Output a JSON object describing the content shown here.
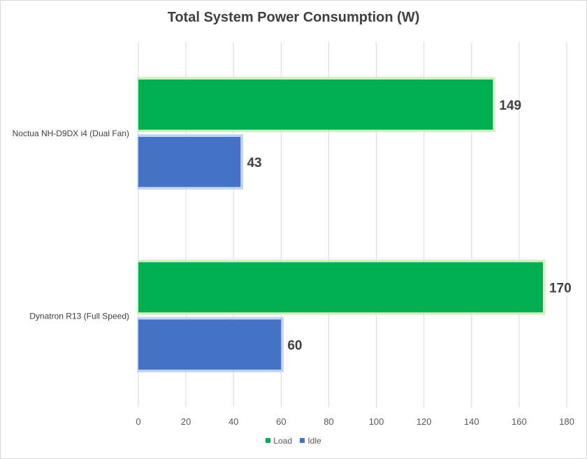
{
  "chart_data": {
    "type": "bar",
    "orientation": "horizontal",
    "title": "Total System Power Consumption (W)",
    "categories": [
      "Noctua NH-D9DX i4 (Dual Fan)",
      "Dynatron R13 (Full Speed)"
    ],
    "series": [
      {
        "name": "Load",
        "color": "#00b050",
        "values": [
          149,
          170
        ]
      },
      {
        "name": "Idle",
        "color": "#4472c4",
        "values": [
          43,
          60
        ]
      }
    ],
    "xlim": [
      0,
      180
    ],
    "xticks": [
      0,
      20,
      40,
      60,
      80,
      100,
      120,
      140,
      160,
      180
    ],
    "grid": true,
    "legend_position": "bottom",
    "xlabel": "",
    "ylabel": ""
  }
}
